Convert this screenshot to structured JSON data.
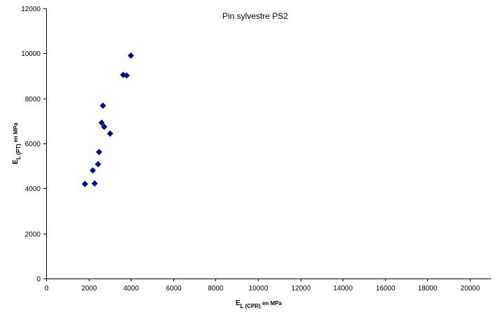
{
  "chart_data": {
    "type": "scatter",
    "title": "Pin sylvestre PS2",
    "xlabel": {
      "main": "E",
      "sub": "L (CPR)",
      "suffix": " en MPa"
    },
    "ylabel": {
      "main": "E",
      "sub": "L (PT)",
      "suffix": " en MPa"
    },
    "xlim": [
      0,
      20000
    ],
    "ylim": [
      0,
      12000
    ],
    "x_ticks": [
      0,
      2000,
      4000,
      6000,
      8000,
      10000,
      12000,
      14000,
      16000,
      18000,
      20000
    ],
    "y_ticks": [
      0,
      2000,
      4000,
      6000,
      8000,
      10000,
      12000
    ],
    "grid": false,
    "legend": "none",
    "marker": "diamond",
    "marker_color": "#000080",
    "points": [
      {
        "x": 1830,
        "y": 4200
      },
      {
        "x": 2200,
        "y": 4800
      },
      {
        "x": 2290,
        "y": 4220
      },
      {
        "x": 2450,
        "y": 5080
      },
      {
        "x": 2500,
        "y": 5620
      },
      {
        "x": 2620,
        "y": 6920
      },
      {
        "x": 2680,
        "y": 7680
      },
      {
        "x": 2740,
        "y": 6740
      },
      {
        "x": 3020,
        "y": 6440
      },
      {
        "x": 3640,
        "y": 9050
      },
      {
        "x": 3800,
        "y": 9020
      },
      {
        "x": 4000,
        "y": 9900
      }
    ]
  }
}
